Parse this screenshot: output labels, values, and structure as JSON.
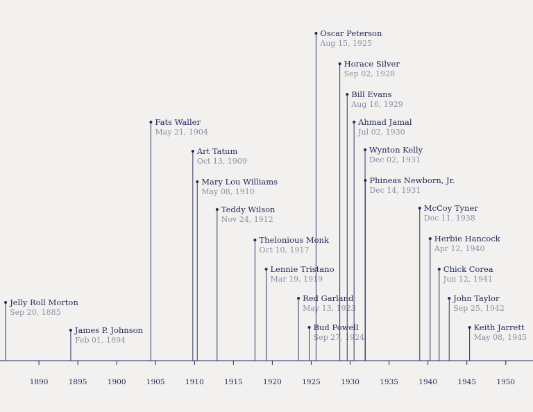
{
  "colors": {
    "background": "#f2f1ef",
    "ink": "#23295a",
    "date_text": "#8a8ea8"
  },
  "chart_data": {
    "type": "timeline",
    "title": "",
    "xlabel": "",
    "ylabel": "",
    "x_axis": {
      "min": 1885.0,
      "max": 1953.5,
      "ticks": [
        "1890",
        "1895",
        "1900",
        "1905",
        "1910",
        "1915",
        "1920",
        "1925",
        "1930",
        "1935",
        "1940",
        "1945",
        "1950"
      ]
    },
    "grid": false,
    "events": [
      {
        "name": "Jelly Roll Morton",
        "date": "Sep 20, 1885",
        "x": 1885.72,
        "level": 2.1
      },
      {
        "name": "James P. Johnson",
        "date": "Feb 01, 1894",
        "x": 1894.09,
        "level": 1.1
      },
      {
        "name": "Fats Waller",
        "date": "May 21, 1904",
        "x": 1904.39,
        "level": 8.6
      },
      {
        "name": "Art Tatum",
        "date": "Oct 13, 1909",
        "x": 1909.78,
        "level": 7.55
      },
      {
        "name": "Mary Lou Williams",
        "date": "May 08, 1910",
        "x": 1910.35,
        "level": 6.45
      },
      {
        "name": "Teddy Wilson",
        "date": "Nov 24, 1912",
        "x": 1912.9,
        "level": 5.45
      },
      {
        "name": "Thelonious Monk",
        "date": "Oct 10, 1917",
        "x": 1917.77,
        "level": 4.35
      },
      {
        "name": "Lennie Tristano",
        "date": "Mar 19, 1919",
        "x": 1919.21,
        "level": 3.3
      },
      {
        "name": "Red Garland",
        "date": "May 13, 1923",
        "x": 1923.36,
        "level": 2.25
      },
      {
        "name": "Bud Powell",
        "date": "Sep 27, 1924",
        "x": 1924.74,
        "level": 1.2
      },
      {
        "name": "Oscar Peterson",
        "date": "Aug 15, 1925",
        "x": 1925.62,
        "level": 11.8
      },
      {
        "name": "Horace Silver",
        "date": "Sep 02, 1928",
        "x": 1928.67,
        "level": 10.7
      },
      {
        "name": "Bill Evans",
        "date": "Aug 16, 1929",
        "x": 1929.62,
        "level": 9.6
      },
      {
        "name": "Ahmad Jamal",
        "date": "Jul 02, 1930",
        "x": 1930.5,
        "level": 8.6
      },
      {
        "name": "Wynton Kelly",
        "date": "Dec 02, 1931",
        "x": 1931.92,
        "level": 7.6
      },
      {
        "name": "Phineas Newborn, Jr.",
        "date": "Dec 14, 1931",
        "x": 1931.95,
        "level": 6.5
      },
      {
        "name": "McCoy Tyner",
        "date": "Dec 11, 1938",
        "x": 1938.94,
        "level": 5.5
      },
      {
        "name": "Herbie Hancock",
        "date": "Apr 12, 1940",
        "x": 1940.28,
        "level": 4.4
      },
      {
        "name": "Chick Corea",
        "date": "Jun 12, 1941",
        "x": 1941.44,
        "level": 3.3
      },
      {
        "name": "John Taylor",
        "date": "Sep 25, 1942",
        "x": 1942.73,
        "level": 2.25
      },
      {
        "name": "Keith Jarrett",
        "date": "May 08, 1945",
        "x": 1945.35,
        "level": 1.2
      }
    ]
  }
}
